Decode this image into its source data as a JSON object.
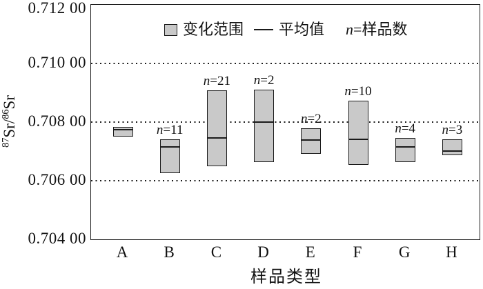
{
  "chart_data": {
    "type": "box-range",
    "title": "",
    "x_axis_title": "样品类型",
    "y_axis_title": "⁸⁷Sr/⁸⁶Sr",
    "y_title_parts": {
      "sup_a": "87",
      "base_a": "Sr/",
      "sup_b": "86",
      "base_b": "Sr"
    },
    "ylim": [
      0.704,
      0.712
    ],
    "y_ticks": [
      {
        "label": "0.712 00",
        "value": 0.712
      },
      {
        "label": "0.710 00",
        "value": 0.71
      },
      {
        "label": "0.708 00",
        "value": 0.708
      },
      {
        "label": "0.706 00",
        "value": 0.706
      },
      {
        "label": "0.704 00",
        "value": 0.704
      }
    ],
    "gridlines": [
      0.71,
      0.708,
      0.706
    ],
    "grid_style": "dotted-horizontal",
    "legend_position": "top-center-inside",
    "legend": {
      "range_label": "变化范围",
      "mean_label": "平均值",
      "n_prefix": "n",
      "n_suffix": "=样品数"
    },
    "categories": [
      {
        "label": "A",
        "n_label": null,
        "low": 0.7075,
        "high": 0.70783,
        "mean": 0.70772
      },
      {
        "label": "B",
        "n_label": "n=11",
        "low": 0.70627,
        "high": 0.70742,
        "mean": 0.70715
      },
      {
        "label": "C",
        "n_label": "n=21",
        "low": 0.70649,
        "high": 0.70908,
        "mean": 0.70744
      },
      {
        "label": "D",
        "n_label": "n=2",
        "low": 0.70664,
        "high": 0.7091,
        "mean": 0.708
      },
      {
        "label": "E",
        "n_label": "n=2",
        "low": 0.70692,
        "high": 0.7078,
        "mean": 0.70737
      },
      {
        "label": "F",
        "n_label": "n=10",
        "low": 0.70653,
        "high": 0.70873,
        "mean": 0.70741
      },
      {
        "label": "G",
        "n_label": "n=4",
        "low": 0.70664,
        "high": 0.70746,
        "mean": 0.70715
      },
      {
        "label": "H",
        "n_label": "n=3",
        "low": 0.70686,
        "high": 0.70742,
        "mean": 0.70699
      }
    ],
    "colors": {
      "box_fill": "#c9c9c9",
      "box_border": "#1a1a1a",
      "text": "#111111",
      "background": "#ffffff"
    }
  }
}
